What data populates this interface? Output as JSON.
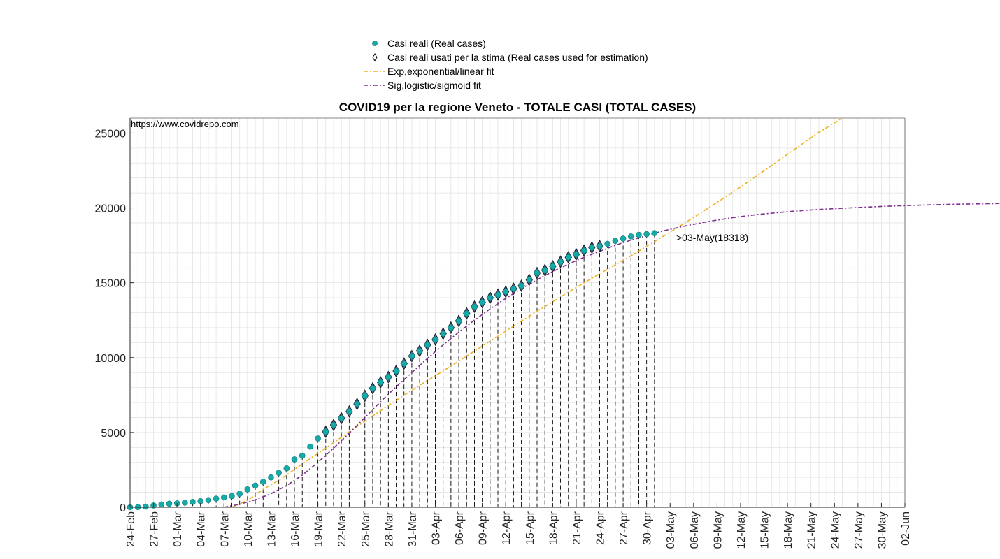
{
  "chart_data": {
    "type": "scatter",
    "title": "COVID19 per la regione Veneto - TOTALE CASI (TOTAL CASES)",
    "source_text": "https://www.covidrepo.com",
    "start_date": "24-Feb",
    "x_tick_labels": [
      "24-Feb",
      "27-Feb",
      "01-Mar",
      "04-Mar",
      "07-Mar",
      "10-Mar",
      "13-Mar",
      "16-Mar",
      "19-Mar",
      "22-Mar",
      "25-Mar",
      "28-Mar",
      "31-Mar",
      "03-Apr",
      "06-Apr",
      "09-Apr",
      "12-Apr",
      "15-Apr",
      "18-Apr",
      "21-Apr",
      "24-Apr",
      "27-Apr",
      "30-Apr",
      "03-May",
      "06-May",
      "09-May",
      "12-May",
      "15-May",
      "18-May",
      "21-May",
      "24-May",
      "27-May",
      "30-May",
      "02-Jun"
    ],
    "ylim": [
      0,
      26000
    ],
    "y_ticks": [
      0,
      5000,
      10000,
      15000,
      20000,
      25000
    ],
    "y_tick_labels": [
      "0",
      "5000",
      "10000",
      "15000",
      "20000",
      "25000"
    ],
    "grid": true,
    "legend_position": "top",
    "legend": [
      {
        "label": "Casi reali (Real cases)",
        "marker": "teal-dot"
      },
      {
        "label": "Casi reali usati per la stima (Real cases used for estimation)",
        "marker": "diamond"
      },
      {
        "label": "Exp,exponential/linear fit",
        "marker": "orange-dashdot-line"
      },
      {
        "label": "Sig,logistic/sigmoid fit",
        "marker": "purple-dashdot-line"
      }
    ],
    "series": [
      {
        "name": "Casi reali (Real cases)",
        "values": [
          0,
          12,
          45,
          118,
          192,
          240,
          263,
          311,
          360,
          410,
          480,
          580,
          660,
          750,
          900,
          1200,
          1450,
          1700,
          2000,
          2300,
          2600,
          3200,
          3450,
          4050,
          4600,
          5050,
          5500,
          5950,
          6400,
          6900,
          7450,
          7950,
          8350,
          8700,
          9100,
          9600,
          10100,
          10450,
          10850,
          11200,
          11600,
          12000,
          12450,
          12950,
          13400,
          13700,
          14000,
          14200,
          14400,
          14600,
          14800,
          15200,
          15650,
          15850,
          16100,
          16400,
          16700,
          16900,
          17150,
          17350,
          17450,
          17600,
          17800,
          17950,
          18100,
          18200,
          18250,
          18318
        ]
      },
      {
        "name": "Casi reali usati per la stima (Real cases used for estimation)",
        "start_index": 25,
        "end_index": 60
      },
      {
        "name": "Exp,exponential/linear fit",
        "points": [
          [
            13,
            0
          ],
          [
            15,
            460
          ],
          [
            17,
            1200
          ],
          [
            19,
            1800
          ],
          [
            22,
            2900
          ],
          [
            25,
            3950
          ],
          [
            28,
            5050
          ],
          [
            31,
            6100
          ],
          [
            34,
            7150
          ],
          [
            37,
            8150
          ],
          [
            40,
            9100
          ],
          [
            43,
            10100
          ],
          [
            46,
            11100
          ],
          [
            49,
            12100
          ],
          [
            52,
            13100
          ],
          [
            55,
            14050
          ],
          [
            58,
            15000
          ],
          [
            61,
            15900
          ],
          [
            64,
            16800
          ],
          [
            67,
            17750
          ],
          [
            70,
            18700
          ],
          [
            73,
            19700
          ],
          [
            76,
            20700
          ],
          [
            79,
            21750
          ],
          [
            82,
            22850
          ],
          [
            85,
            23950
          ],
          [
            88,
            25050
          ],
          [
            91,
            26000
          ]
        ]
      },
      {
        "name": "Sig,logistic/sigmoid fit",
        "points": [
          [
            12,
            0
          ],
          [
            14,
            200
          ],
          [
            16,
            500
          ],
          [
            18,
            900
          ],
          [
            20,
            1450
          ],
          [
            22,
            2150
          ],
          [
            24,
            3000
          ],
          [
            26,
            3950
          ],
          [
            28,
            4950
          ],
          [
            30,
            6000
          ],
          [
            32,
            7050
          ],
          [
            34,
            8050
          ],
          [
            36,
            9000
          ],
          [
            38,
            9950
          ],
          [
            40,
            10850
          ],
          [
            42,
            11700
          ],
          [
            44,
            12500
          ],
          [
            46,
            13250
          ],
          [
            48,
            13950
          ],
          [
            50,
            14600
          ],
          [
            52,
            15200
          ],
          [
            54,
            15750
          ],
          [
            56,
            16250
          ],
          [
            58,
            16700
          ],
          [
            60,
            17100
          ],
          [
            62,
            17500
          ],
          [
            64,
            17850
          ],
          [
            66,
            18150
          ],
          [
            68,
            18450
          ],
          [
            71,
            18800
          ],
          [
            74,
            19100
          ],
          [
            77,
            19350
          ],
          [
            80,
            19550
          ],
          [
            84,
            19750
          ],
          [
            88,
            19900
          ],
          [
            92,
            20000
          ],
          [
            96,
            20100
          ],
          [
            100,
            20170
          ],
          [
            104,
            20230
          ],
          [
            108,
            20270
          ],
          [
            112,
            20300
          ],
          [
            117,
            20330
          ]
        ]
      }
    ],
    "annotation": ">03-May(18318)",
    "colors": {
      "real": "#17a9a7",
      "exp_fit": "#edb120",
      "sig_fit": "#7e2f8e",
      "diamond_stroke": "#1a1a2e",
      "diamond_fill": "#4a6a88"
    }
  }
}
